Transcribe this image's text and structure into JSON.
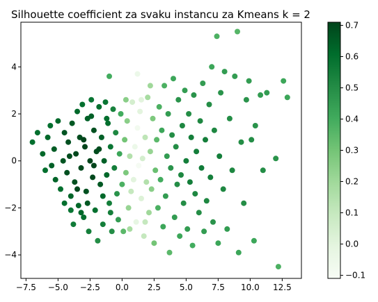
{
  "chart_data": {
    "type": "scatter",
    "title": "Silhouette coefficient za svaku instancu za Kmeans k = 2",
    "xlabel": "",
    "ylabel": "",
    "xlim": [
      -7.9,
      14.0
    ],
    "ylim": [
      -5.0,
      5.9
    ],
    "xticks": [
      -7.5,
      -5.0,
      -2.5,
      0.0,
      2.5,
      5.0,
      7.5,
      10.0,
      12.5
    ],
    "xtick_labels": [
      "−7.5",
      "−5.0",
      "−2.5",
      "0.0",
      "2.5",
      "5.0",
      "7.5",
      "10.0",
      "12.5"
    ],
    "yticks": [
      -4,
      -2,
      0,
      2,
      4
    ],
    "ytick_labels": [
      "−4",
      "−2",
      "0",
      "2",
      "4"
    ],
    "grid": false,
    "colormap": "Greens",
    "colormap_stops": [
      "#f7fcf5",
      "#e5f5e0",
      "#c7e9c0",
      "#a1d99b",
      "#74c476",
      "#41ab5d",
      "#238b45",
      "#006d2c",
      "#00441b"
    ],
    "colorbar": {
      "min": -0.11,
      "max": 0.71,
      "ticks": [
        -0.1,
        0.0,
        0.1,
        0.2,
        0.3,
        0.4,
        0.5,
        0.6,
        0.7
      ],
      "tick_labels": [
        "−0.1",
        "0.0",
        "0.1",
        "0.2",
        "0.3",
        "0.4",
        "0.5",
        "0.6",
        "0.7"
      ]
    },
    "points": [
      [
        -7.0,
        0.8,
        0.6
      ],
      [
        -6.6,
        1.2,
        0.6
      ],
      [
        -6.2,
        0.3,
        0.62
      ],
      [
        -6.0,
        -0.4,
        0.6
      ],
      [
        -5.8,
        1.0,
        0.62
      ],
      [
        -5.6,
        1.5,
        0.6
      ],
      [
        -5.5,
        -0.2,
        0.64
      ],
      [
        -5.3,
        0.5,
        0.65
      ],
      [
        -5.2,
        -0.8,
        0.63
      ],
      [
        -5.0,
        1.7,
        0.62
      ],
      [
        -4.8,
        -1.2,
        0.6
      ],
      [
        -4.6,
        0.0,
        0.67
      ],
      [
        -4.5,
        1.2,
        0.67
      ],
      [
        -4.3,
        -0.5,
        0.68
      ],
      [
        -4.2,
        0.8,
        0.68
      ],
      [
        -4.0,
        -2.1,
        0.58
      ],
      [
        -4.0,
        -1.5,
        0.63
      ],
      [
        -3.9,
        1.6,
        0.66
      ],
      [
        -3.8,
        -2.7,
        0.56
      ],
      [
        -3.7,
        -0.9,
        0.68
      ],
      [
        -3.6,
        0.3,
        0.7
      ],
      [
        -3.5,
        2.1,
        0.62
      ],
      [
        -3.4,
        -1.9,
        0.62
      ],
      [
        -3.3,
        1.0,
        0.69
      ],
      [
        -3.2,
        -0.3,
        0.7
      ],
      [
        -3.1,
        2.4,
        0.6
      ],
      [
        -3.0,
        -2.4,
        0.6
      ],
      [
        -2.9,
        0.6,
        0.71
      ],
      [
        -2.8,
        -1.3,
        0.68
      ],
      [
        -2.7,
        1.8,
        0.64
      ],
      [
        -2.6,
        -3.0,
        0.55
      ],
      [
        -2.5,
        0.0,
        0.71
      ],
      [
        -2.4,
        2.6,
        0.58
      ],
      [
        -2.3,
        -0.7,
        0.7
      ],
      [
        -2.2,
        1.3,
        0.68
      ],
      [
        -2.1,
        -2.1,
        0.6
      ],
      [
        -2.0,
        0.4,
        0.69
      ],
      [
        -1.9,
        -3.4,
        0.5
      ],
      [
        -1.8,
        2.3,
        0.6
      ],
      [
        -1.7,
        -1.0,
        0.66
      ],
      [
        -1.6,
        1.0,
        0.64
      ],
      [
        -1.5,
        -2.7,
        0.55
      ],
      [
        -1.4,
        0.0,
        0.64
      ],
      [
        -1.3,
        2.5,
        0.58
      ],
      [
        -1.2,
        -0.6,
        0.62
      ],
      [
        -1.1,
        1.6,
        0.6
      ],
      [
        -1.0,
        -1.8,
        0.55
      ],
      [
        -0.9,
        0.6,
        0.58
      ],
      [
        -0.8,
        -3.0,
        0.5
      ],
      [
        -0.7,
        2.2,
        0.54
      ],
      [
        -0.6,
        -0.3,
        0.55
      ],
      [
        -0.5,
        1.2,
        0.52
      ],
      [
        -0.4,
        -1.4,
        0.48
      ],
      [
        -0.3,
        -2.5,
        0.45
      ],
      [
        -0.2,
        0.3,
        0.42
      ],
      [
        -0.1,
        2.0,
        0.4
      ],
      [
        0.0,
        -1.0,
        0.38
      ],
      [
        0.1,
        -3.0,
        0.35
      ],
      [
        0.2,
        0.9,
        0.3
      ],
      [
        0.3,
        -0.5,
        0.28
      ],
      [
        0.4,
        1.7,
        0.25
      ],
      [
        0.5,
        -2.0,
        0.22
      ],
      [
        0.6,
        0.2,
        0.15
      ],
      [
        0.7,
        -1.3,
        0.1
      ],
      [
        0.8,
        2.5,
        0.05
      ],
      [
        0.9,
        -0.8,
        0.0
      ],
      [
        1.0,
        0.6,
        -0.05
      ],
      [
        1.1,
        -2.6,
        -0.02
      ],
      [
        1.2,
        1.4,
        -0.08
      ],
      [
        1.3,
        -0.2,
        -0.1
      ],
      [
        1.4,
        2.1,
        0.0
      ],
      [
        1.5,
        -1.6,
        0.02
      ],
      [
        1.6,
        0.1,
        0.05
      ],
      [
        1.7,
        -3.2,
        0.1
      ],
      [
        1.8,
        1.0,
        0.12
      ],
      [
        1.9,
        -0.9,
        0.15
      ],
      [
        2.0,
        2.7,
        0.18
      ],
      [
        2.1,
        -2.2,
        0.2
      ],
      [
        2.2,
        0.4,
        0.22
      ],
      [
        2.3,
        -1.2,
        0.25
      ],
      [
        2.4,
        1.8,
        0.28
      ],
      [
        2.5,
        -3.5,
        0.3
      ],
      [
        2.6,
        -0.4,
        0.32
      ],
      [
        2.7,
        0.9,
        0.35
      ],
      [
        2.8,
        -2.0,
        0.38
      ],
      [
        2.9,
        2.3,
        0.38
      ],
      [
        3.0,
        -0.8,
        0.4
      ],
      [
        3.1,
        1.3,
        0.42
      ],
      [
        3.2,
        -2.8,
        0.42
      ],
      [
        3.3,
        3.2,
        0.38
      ],
      [
        3.4,
        -1.5,
        0.45
      ],
      [
        3.5,
        0.2,
        0.45
      ],
      [
        3.6,
        2.0,
        0.45
      ],
      [
        3.7,
        -3.9,
        0.35
      ],
      [
        3.8,
        -0.3,
        0.48
      ],
      [
        3.9,
        1.1,
        0.5
      ],
      [
        4.0,
        3.5,
        0.42
      ],
      [
        4.1,
        -2.4,
        0.45
      ],
      [
        4.2,
        0.6,
        0.5
      ],
      [
        4.3,
        -1.0,
        0.5
      ],
      [
        4.4,
        2.6,
        0.48
      ],
      [
        4.5,
        -3.2,
        0.42
      ],
      [
        4.6,
        -0.6,
        0.52
      ],
      [
        4.7,
        1.5,
        0.52
      ],
      [
        4.8,
        -1.8,
        0.5
      ],
      [
        4.9,
        3.0,
        0.45
      ],
      [
        5.0,
        0.0,
        0.55
      ],
      [
        5.1,
        -2.9,
        0.45
      ],
      [
        5.2,
        2.0,
        0.5
      ],
      [
        5.3,
        -0.9,
        0.55
      ],
      [
        5.4,
        1.0,
        0.55
      ],
      [
        5.5,
        -3.6,
        0.4
      ],
      [
        5.6,
        2.8,
        0.48
      ],
      [
        5.7,
        -1.4,
        0.52
      ],
      [
        5.8,
        0.4,
        0.55
      ],
      [
        6.0,
        -2.2,
        0.5
      ],
      [
        6.1,
        1.7,
        0.52
      ],
      [
        6.2,
        -0.3,
        0.56
      ],
      [
        6.3,
        3.3,
        0.45
      ],
      [
        6.4,
        -3.0,
        0.45
      ],
      [
        6.5,
        0.9,
        0.55
      ],
      [
        6.6,
        -1.7,
        0.52
      ],
      [
        6.8,
        2.4,
        0.5
      ],
      [
        6.9,
        -0.7,
        0.55
      ],
      [
        7.0,
        4.0,
        0.42
      ],
      [
        7.1,
        -2.6,
        0.48
      ],
      [
        7.2,
        1.3,
        0.52
      ],
      [
        7.4,
        5.3,
        0.38
      ],
      [
        7.5,
        -3.5,
        0.42
      ],
      [
        7.6,
        0.2,
        0.55
      ],
      [
        7.7,
        2.9,
        0.48
      ],
      [
        7.9,
        -1.2,
        0.52
      ],
      [
        8.0,
        3.8,
        0.45
      ],
      [
        8.2,
        -2.9,
        0.45
      ],
      [
        8.4,
        1.8,
        0.5
      ],
      [
        8.6,
        -0.4,
        0.52
      ],
      [
        8.8,
        3.6,
        0.45
      ],
      [
        9.0,
        5.5,
        0.36
      ],
      [
        9.1,
        -3.9,
        0.42
      ],
      [
        9.3,
        0.8,
        0.5
      ],
      [
        9.5,
        -1.8,
        0.5
      ],
      [
        9.7,
        2.6,
        0.48
      ],
      [
        9.9,
        3.4,
        0.45
      ],
      [
        10.1,
        0.9,
        0.5
      ],
      [
        10.3,
        -3.4,
        0.42
      ],
      [
        10.4,
        1.5,
        0.48
      ],
      [
        10.8,
        2.8,
        0.45
      ],
      [
        11.0,
        -0.4,
        0.5
      ],
      [
        11.3,
        2.9,
        0.45
      ],
      [
        12.0,
        0.1,
        0.48
      ],
      [
        12.2,
        -4.5,
        0.38
      ],
      [
        12.6,
        3.4,
        0.42
      ],
      [
        12.9,
        2.7,
        0.42
      ],
      [
        -1.0,
        3.6,
        0.4
      ],
      [
        1.2,
        3.7,
        -0.05
      ],
      [
        2.2,
        3.2,
        0.2
      ],
      [
        -3.5,
        -1.2,
        0.7
      ],
      [
        -3.0,
        0.9,
        0.71
      ],
      [
        -2.2,
        -0.2,
        0.71
      ],
      [
        -1.8,
        0.5,
        0.69
      ],
      [
        -4.1,
        0.2,
        0.69
      ],
      [
        -2.7,
        -1.8,
        0.66
      ],
      [
        -1.5,
        -1.5,
        0.62
      ],
      [
        -3.2,
        -2.2,
        0.62
      ],
      [
        -2.4,
        1.9,
        0.64
      ],
      [
        -1.2,
        1.8,
        0.6
      ],
      [
        -0.9,
        -2.2,
        0.55
      ],
      [
        -4.5,
        -1.8,
        0.6
      ],
      [
        0.3,
        2.6,
        0.25
      ],
      [
        0.6,
        -2.9,
        0.18
      ],
      [
        1.5,
        2.6,
        0.0
      ],
      [
        1.8,
        -2.6,
        0.1
      ]
    ]
  }
}
